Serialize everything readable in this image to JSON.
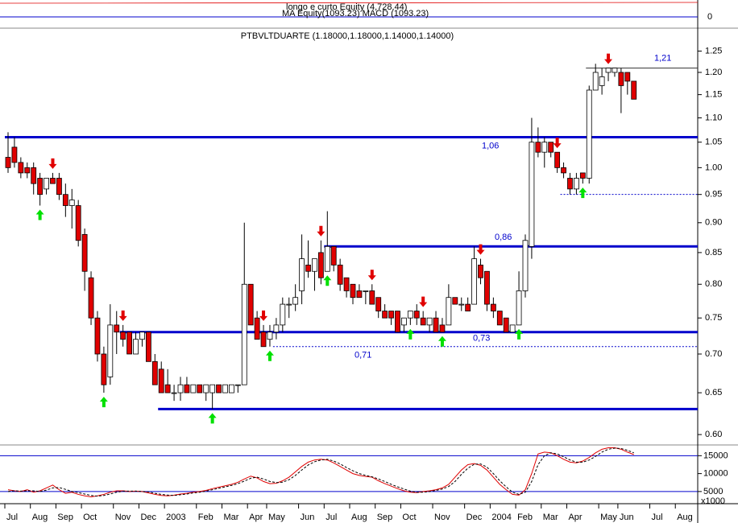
{
  "chart_data": [
    {
      "type": "candlestick",
      "title": "PTBVLTDUARTE (1.18000,1.18000,1.14000,1.14000)",
      "categories": [
        "Jul",
        null,
        null,
        null,
        "Aug",
        null,
        null,
        null,
        "Sep",
        null,
        null,
        null,
        "Oct",
        null,
        null,
        null,
        null,
        "Nov",
        null,
        null,
        null,
        "Dec",
        null,
        null,
        null,
        "2003",
        null,
        null,
        null,
        null,
        "Feb",
        null,
        null,
        null,
        "Mar",
        null,
        null,
        null,
        "Apr",
        null,
        null,
        "May",
        null,
        null,
        null,
        null,
        "Jun",
        null,
        null,
        null,
        "Jul",
        null,
        null,
        null,
        "Aug",
        null,
        null,
        null,
        "Sep",
        null,
        null,
        null,
        "Oct",
        null,
        null,
        null,
        null,
        "Nov",
        null,
        null,
        null,
        null,
        "Dec",
        null,
        null,
        null,
        "2004",
        null,
        null,
        null,
        "Feb",
        null,
        null,
        null,
        "Mar",
        null,
        null,
        null,
        "Apr",
        null,
        null,
        null,
        null,
        "May",
        null,
        null,
        "Jun",
        null,
        null,
        null,
        null,
        "Jul",
        null,
        null,
        null,
        "Aug",
        null,
        null
      ],
      "open": [
        1.02,
        1.04,
        1.01,
        1.0,
        1.0,
        0.98,
        0.96,
        0.98,
        0.98,
        0.95,
        0.93,
        0.93,
        0.88,
        0.81,
        0.75,
        0.7,
        0.67,
        0.74,
        0.73,
        0.73,
        0.7,
        0.72,
        0.73,
        0.69,
        0.68,
        0.66,
        0.65,
        0.65,
        0.66,
        0.65,
        0.66,
        0.65,
        0.65,
        0.66,
        0.65,
        0.65,
        0.66,
        0.66,
        0.8,
        0.75,
        0.73,
        0.72,
        0.73,
        0.74,
        0.77,
        0.77,
        0.79,
        0.83,
        0.82,
        0.85,
        0.82,
        0.86,
        0.83,
        0.81,
        0.8,
        0.79,
        0.79,
        0.79,
        0.78,
        0.76,
        0.76,
        0.76,
        0.74,
        0.75,
        0.76,
        0.75,
        0.74,
        0.75,
        0.74,
        0.74,
        0.78,
        0.77,
        0.77,
        0.77,
        0.83,
        0.82,
        0.77,
        0.76,
        0.75,
        0.73,
        0.74,
        0.79,
        0.86,
        1.05,
        1.03,
        1.05,
        1.03,
        1.0,
        0.98,
        0.96,
        0.99,
        0.98,
        1.16,
        1.17,
        1.2,
        1.2,
        1.2,
        1.2,
        1.18,
        null,
        null,
        null,
        null,
        null,
        null,
        null,
        null,
        null
      ],
      "high": [
        1.07,
        1.06,
        1.02,
        1.01,
        1.01,
        0.99,
        0.98,
        0.99,
        0.99,
        0.97,
        0.96,
        0.94,
        0.89,
        0.82,
        0.76,
        0.71,
        0.77,
        0.76,
        0.74,
        0.73,
        0.73,
        0.73,
        0.73,
        0.7,
        0.69,
        0.68,
        0.66,
        0.67,
        0.67,
        0.66,
        0.66,
        0.66,
        0.66,
        0.66,
        0.66,
        0.66,
        0.66,
        0.9,
        0.8,
        0.76,
        0.74,
        0.74,
        0.75,
        0.78,
        0.78,
        0.8,
        0.88,
        0.87,
        0.84,
        0.87,
        0.92,
        0.86,
        0.84,
        0.81,
        0.8,
        0.8,
        0.79,
        0.8,
        0.78,
        0.77,
        0.76,
        0.76,
        0.75,
        0.76,
        0.77,
        0.76,
        0.75,
        0.76,
        0.75,
        0.8,
        0.78,
        0.78,
        0.78,
        0.86,
        0.84,
        0.82,
        0.78,
        0.76,
        0.75,
        0.74,
        0.82,
        0.88,
        1.1,
        1.08,
        1.06,
        1.05,
        1.03,
        1.01,
        0.99,
        0.99,
        0.99,
        1.17,
        1.22,
        1.21,
        1.21,
        1.21,
        1.21,
        1.2,
        1.18,
        null,
        null,
        null,
        null,
        null,
        null,
        null,
        null,
        null
      ],
      "low": [
        0.99,
        1.0,
        0.98,
        0.98,
        0.95,
        0.93,
        0.95,
        0.97,
        0.94,
        0.91,
        0.89,
        0.86,
        0.79,
        0.74,
        0.69,
        0.65,
        0.66,
        0.7,
        0.71,
        0.7,
        0.7,
        0.71,
        0.69,
        0.66,
        0.65,
        0.65,
        0.64,
        0.64,
        0.65,
        0.65,
        0.65,
        0.64,
        0.63,
        0.65,
        0.65,
        0.65,
        0.65,
        0.66,
        0.74,
        0.72,
        0.71,
        0.71,
        0.72,
        0.73,
        0.75,
        0.76,
        0.77,
        0.81,
        0.79,
        0.8,
        0.82,
        0.82,
        0.79,
        0.78,
        0.77,
        0.78,
        0.77,
        0.77,
        0.75,
        0.75,
        0.74,
        0.73,
        0.73,
        0.74,
        0.74,
        0.74,
        0.73,
        0.73,
        0.73,
        0.74,
        0.77,
        0.76,
        0.76,
        0.77,
        0.8,
        0.76,
        0.75,
        0.74,
        0.73,
        0.73,
        0.74,
        0.78,
        0.84,
        1.02,
        1.0,
        1.02,
        0.99,
        0.98,
        0.95,
        0.95,
        0.97,
        0.97,
        1.16,
        1.15,
        1.18,
        1.19,
        1.11,
        1.15,
        1.14,
        null,
        null,
        null,
        null,
        null,
        null,
        null,
        null,
        null
      ],
      "close": [
        1.0,
        1.01,
        0.99,
        0.99,
        0.97,
        0.95,
        0.98,
        0.97,
        0.95,
        0.93,
        0.94,
        0.87,
        0.82,
        0.75,
        0.7,
        0.66,
        0.74,
        0.73,
        0.72,
        0.7,
        0.72,
        0.73,
        0.69,
        0.66,
        0.65,
        0.65,
        0.65,
        0.66,
        0.65,
        0.66,
        0.65,
        0.66,
        0.66,
        0.65,
        0.66,
        0.66,
        0.66,
        0.8,
        0.74,
        0.72,
        0.71,
        0.73,
        0.74,
        0.77,
        0.77,
        0.78,
        0.84,
        0.82,
        0.84,
        0.81,
        0.86,
        0.83,
        0.8,
        0.79,
        0.78,
        0.78,
        0.79,
        0.77,
        0.76,
        0.75,
        0.75,
        0.73,
        0.75,
        0.76,
        0.75,
        0.74,
        0.75,
        0.73,
        0.73,
        0.78,
        0.77,
        0.77,
        0.76,
        0.84,
        0.81,
        0.77,
        0.76,
        0.74,
        0.73,
        0.74,
        0.79,
        0.87,
        1.05,
        1.03,
        1.05,
        1.03,
        1.0,
        0.99,
        0.96,
        0.98,
        0.98,
        1.16,
        1.2,
        1.19,
        1.21,
        1.21,
        1.17,
        1.18,
        1.14,
        null,
        null,
        null,
        null,
        null,
        null,
        null,
        null,
        null
      ],
      "up_color": "#ffffff",
      "down_color": "#e00000",
      "log_scale": true,
      "ylim": [
        0.59,
        1.3
      ],
      "yticks": [
        {
          "value": 0.6,
          "label": "0.60"
        },
        0.65,
        {
          "value": 0.7,
          "label": "0.70"
        },
        0.75,
        {
          "value": 0.8,
          "label": "0.80"
        },
        0.85,
        {
          "value": 0.9,
          "label": "0.90"
        },
        0.95,
        {
          "value": 1,
          "label": "1.00"
        },
        1.05,
        {
          "value": 1.1,
          "label": "1.10"
        },
        1.15,
        {
          "value": 1.2,
          "label": "1.20"
        },
        1.25
      ],
      "buy_signals": [
        5,
        15,
        32,
        41,
        50,
        63,
        68,
        80,
        90
      ],
      "sell_signals": [
        7,
        18,
        40,
        49,
        57,
        65,
        74,
        86,
        94
      ],
      "buy_color": "#00e000",
      "sell_color": "#e00000",
      "levels": [
        {
          "value": 1.06,
          "label": "1,06",
          "from": 0,
          "style": "thick"
        },
        {
          "value": 0.86,
          "label": "0,86",
          "from": 50,
          "style": "thick"
        },
        {
          "value": 0.73,
          "label": "0,73",
          "from": 18,
          "style": "thick"
        },
        {
          "value": 0.63,
          "from": 24,
          "style": "thick"
        },
        {
          "value": 1.21,
          "label": "1,21",
          "from": 91,
          "style": "thin"
        },
        {
          "value": 0.95,
          "from": 87,
          "style": "dotted"
        },
        {
          "value": 0.71,
          "label": "0,71",
          "from": 42,
          "style": "dotted"
        }
      ],
      "level_color": "#0000cc"
    },
    {
      "type": "line",
      "series": [
        {
          "color": "#e00000",
          "dash": false,
          "values": [
            5500,
            5200,
            5000,
            5500,
            4800,
            5200,
            6000,
            6800,
            5500,
            4500,
            4800,
            4200,
            3800,
            3500,
            3800,
            4200,
            4800,
            5200,
            5200,
            5000,
            5100,
            5000,
            4600,
            4200,
            3900,
            3800,
            4000,
            4300,
            4500,
            4800,
            5000,
            5300,
            5800,
            6200,
            6600,
            7000,
            7600,
            8500,
            9300,
            8800,
            7800,
            7200,
            7300,
            8000,
            9000,
            10500,
            12000,
            13200,
            13800,
            14000,
            13800,
            13000,
            12000,
            11000,
            10000,
            9500,
            9200,
            9000,
            8000,
            7200,
            6500,
            5800,
            5200,
            4800,
            4700,
            5000,
            5200,
            5500,
            6000,
            7000,
            9000,
            11000,
            12500,
            12800,
            12300,
            11000,
            9000,
            7000,
            5500,
            4200,
            4000,
            5500,
            10000,
            15500,
            16000,
            15800,
            15000,
            14000,
            13200,
            13000,
            13500,
            14500,
            15800,
            16800,
            17200,
            17200,
            16800,
            16000,
            15300,
            null,
            null,
            null,
            null,
            null,
            null,
            null,
            null,
            null
          ]
        },
        {
          "color": "#000000",
          "dash": true,
          "values": [
            5000,
            5200,
            5100,
            5200,
            5200,
            5000,
            5400,
            6000,
            6100,
            5600,
            5000,
            4700,
            4300,
            3900,
            3700,
            3900,
            4300,
            4800,
            5100,
            5100,
            5100,
            5000,
            4900,
            4500,
            4200,
            4000,
            3900,
            4100,
            4300,
            4600,
            4800,
            5100,
            5500,
            5900,
            6300,
            6700,
            7200,
            7900,
            8700,
            9000,
            8500,
            7800,
            7500,
            7600,
            8300,
            9500,
            11000,
            12400,
            13300,
            13800,
            14000,
            13500,
            12700,
            11700,
            10800,
            10000,
            9500,
            9100,
            8500,
            7800,
            7000,
            6300,
            5700,
            5100,
            4800,
            4800,
            5000,
            5300,
            5700,
            6400,
            7800,
            9800,
            11500,
            12600,
            12700,
            11800,
            10000,
            8000,
            6300,
            4800,
            4200,
            4800,
            7800,
            12500,
            15000,
            15800,
            15500,
            14700,
            13800,
            13200,
            13200,
            13800,
            14800,
            16000,
            16800,
            17100,
            17000,
            16500,
            15800,
            null,
            null,
            null,
            null,
            null,
            null,
            null,
            null,
            null
          ]
        }
      ],
      "ylim": [
        1600,
        18000
      ],
      "yticks": [
        5000,
        10000,
        15000
      ],
      "levels": [
        5000,
        15000
      ],
      "level_color": "#0000cc",
      "unit_label": "x1000"
    },
    {
      "type": "indicator",
      "title": "longo e curto Equity (4,728.44)",
      "subtitle": "MA Equity(1093.23) MACD (1093.23)",
      "yticks": [
        0
      ]
    }
  ]
}
